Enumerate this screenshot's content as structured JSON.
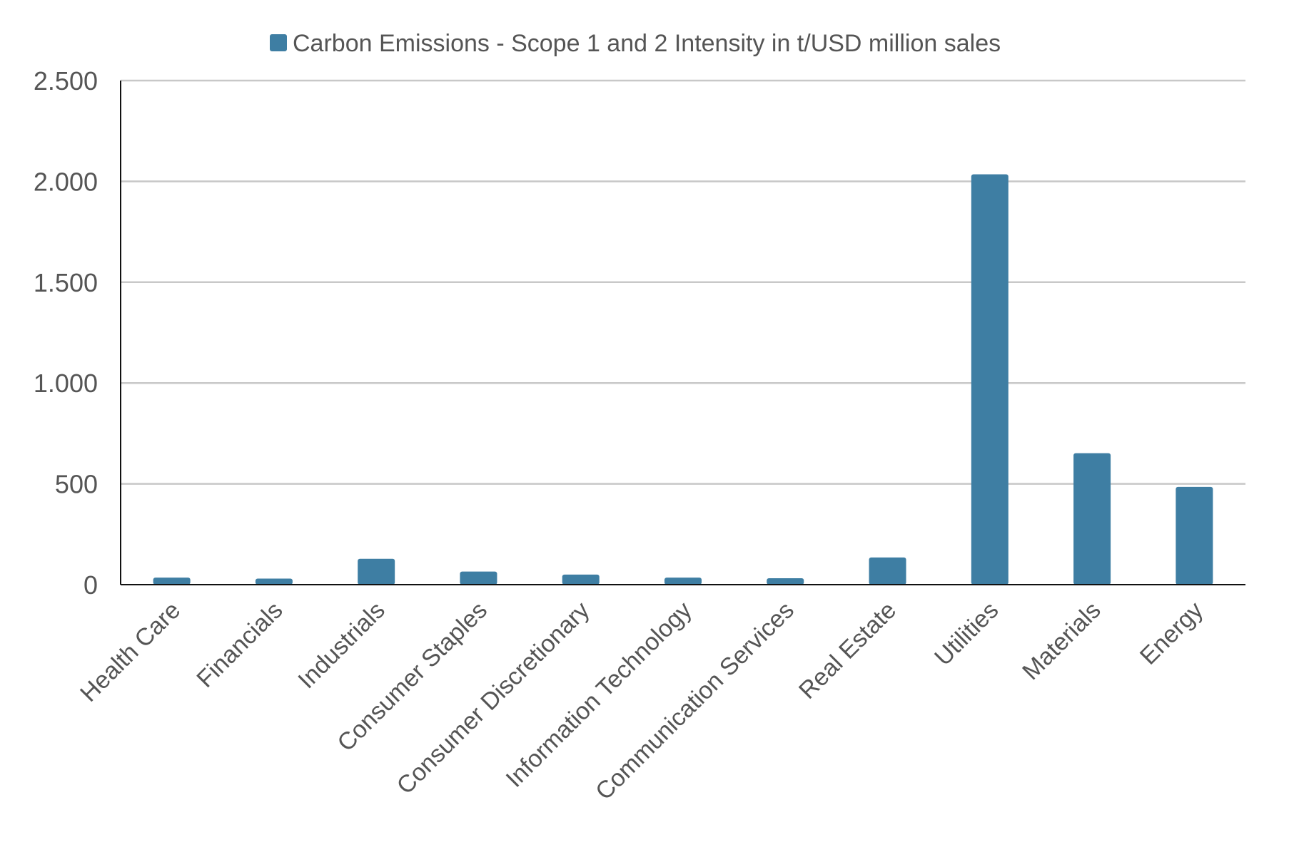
{
  "chart_data": {
    "type": "bar",
    "legend": {
      "position": "top-center",
      "entries": [
        {
          "label": "Carbon Emissions - Scope 1 and 2 Intensity in t/USD million sales",
          "color": "#3e7ea3"
        }
      ]
    },
    "categories": [
      "Health Care",
      "Financials",
      "Industrials",
      "Consumer Staples",
      "Consumer Discretionary",
      "Information Technology",
      "Communication Services",
      "Real Estate",
      "Utilities",
      "Materials",
      "Energy"
    ],
    "series": [
      {
        "name": "Carbon Emissions - Scope 1 and 2 Intensity in t/USD million sales",
        "color": "#3e7ea3",
        "values": [
          35,
          30,
          128,
          65,
          50,
          35,
          32,
          135,
          2035,
          652,
          485
        ]
      }
    ],
    "ylim": [
      0,
      2500
    ],
    "yticks": [
      0,
      500,
      1000,
      1500,
      2000,
      2500
    ],
    "ytick_labels": [
      "0",
      "500",
      "1.000",
      "1.500",
      "2.000",
      "2.500"
    ],
    "grid": true,
    "xlabel": "",
    "ylabel": "",
    "title": ""
  }
}
